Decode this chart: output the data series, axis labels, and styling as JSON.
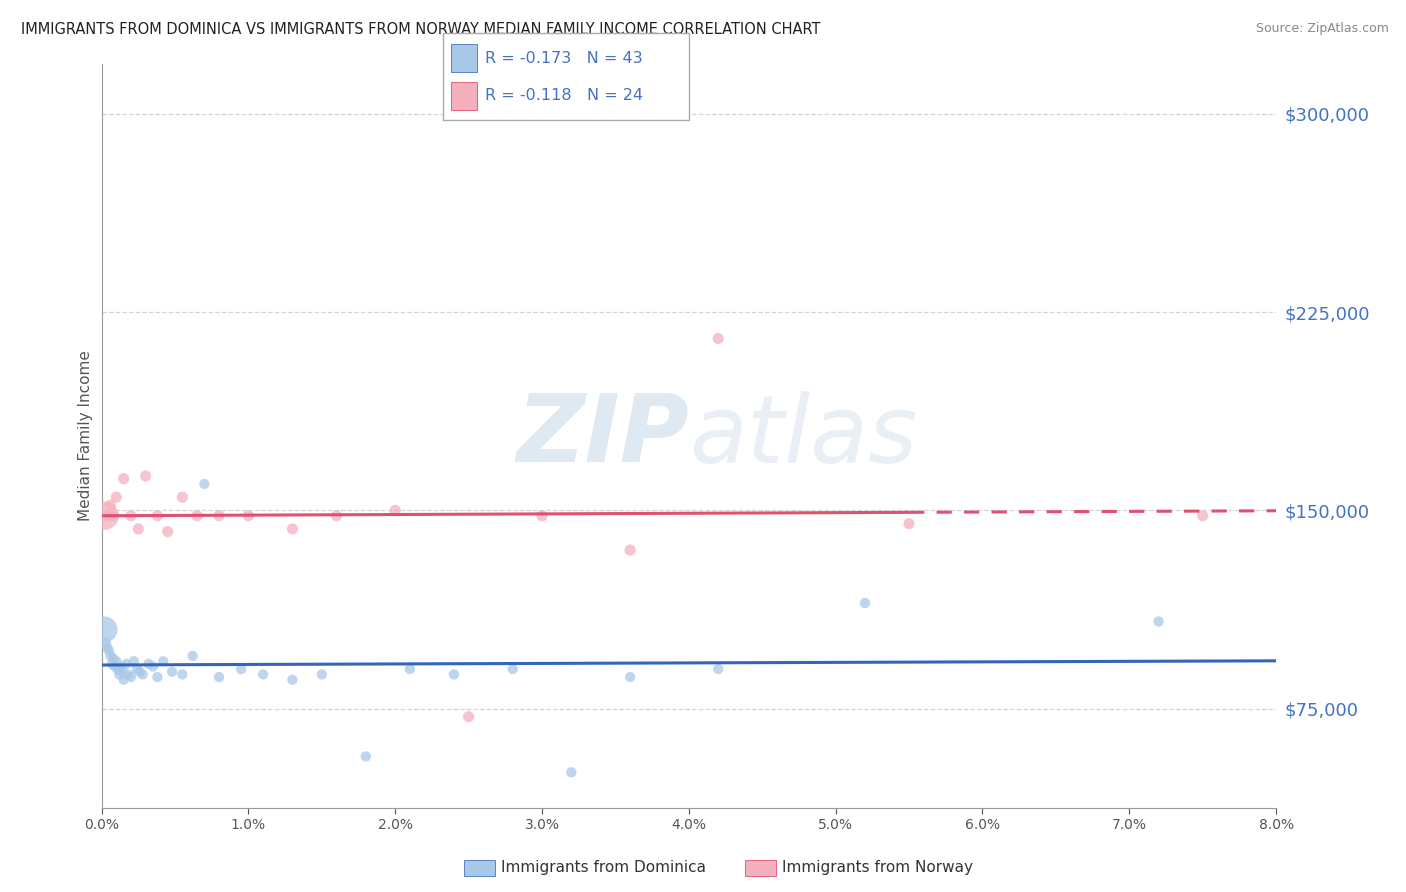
{
  "title": "IMMIGRANTS FROM DOMINICA VS IMMIGRANTS FROM NORWAY MEDIAN FAMILY INCOME CORRELATION CHART",
  "source": "Source: ZipAtlas.com",
  "ylabel": "Median Family Income",
  "xmin": 0.0,
  "xmax": 8.0,
  "ymin": 37500,
  "ymax": 318750,
  "yticks": [
    75000,
    150000,
    225000,
    300000
  ],
  "ytick_labels": [
    "$75,000",
    "$150,000",
    "$225,000",
    "$300,000"
  ],
  "series_dominica": {
    "label": "Immigrants from Dominica",
    "R": -0.173,
    "N": 43,
    "color": "#a8c8e8",
    "line_color": "#3366bb",
    "x": [
      0.02,
      0.03,
      0.04,
      0.05,
      0.06,
      0.07,
      0.08,
      0.09,
      0.1,
      0.11,
      0.12,
      0.13,
      0.14,
      0.15,
      0.17,
      0.18,
      0.2,
      0.22,
      0.24,
      0.26,
      0.28,
      0.32,
      0.35,
      0.38,
      0.42,
      0.48,
      0.55,
      0.62,
      0.7,
      0.8,
      0.95,
      1.1,
      1.3,
      1.5,
      1.8,
      2.1,
      2.4,
      2.8,
      3.2,
      3.6,
      4.2,
      5.2,
      7.2
    ],
    "y": [
      105000,
      100000,
      98000,
      97000,
      95000,
      92000,
      94000,
      91000,
      93000,
      90000,
      88000,
      91000,
      89000,
      86000,
      92000,
      88000,
      87000,
      93000,
      90000,
      89000,
      88000,
      92000,
      91000,
      87000,
      93000,
      89000,
      88000,
      95000,
      160000,
      87000,
      90000,
      88000,
      86000,
      88000,
      57000,
      90000,
      88000,
      90000,
      51000,
      87000,
      90000,
      115000,
      108000
    ]
  },
  "series_norway": {
    "label": "Immigrants from Norway",
    "R": -0.118,
    "N": 24,
    "color": "#f4b0be",
    "line_color": "#e05070",
    "x": [
      0.02,
      0.04,
      0.06,
      0.08,
      0.1,
      0.15,
      0.2,
      0.25,
      0.3,
      0.38,
      0.45,
      0.55,
      0.65,
      0.8,
      1.0,
      1.3,
      1.6,
      2.0,
      2.5,
      3.0,
      3.6,
      4.2,
      5.5,
      7.5
    ],
    "y": [
      148000,
      148000,
      152000,
      148000,
      155000,
      162000,
      148000,
      143000,
      163000,
      148000,
      142000,
      155000,
      148000,
      148000,
      148000,
      143000,
      148000,
      150000,
      72000,
      148000,
      135000,
      215000,
      145000,
      148000
    ]
  },
  "watermark_zip": "ZIP",
  "watermark_atlas": "atlas",
  "background_color": "#ffffff",
  "grid_color": "#cccccc",
  "title_color": "#222222",
  "axis_label_color": "#4472c4",
  "legend_text_color": "#4472c4"
}
